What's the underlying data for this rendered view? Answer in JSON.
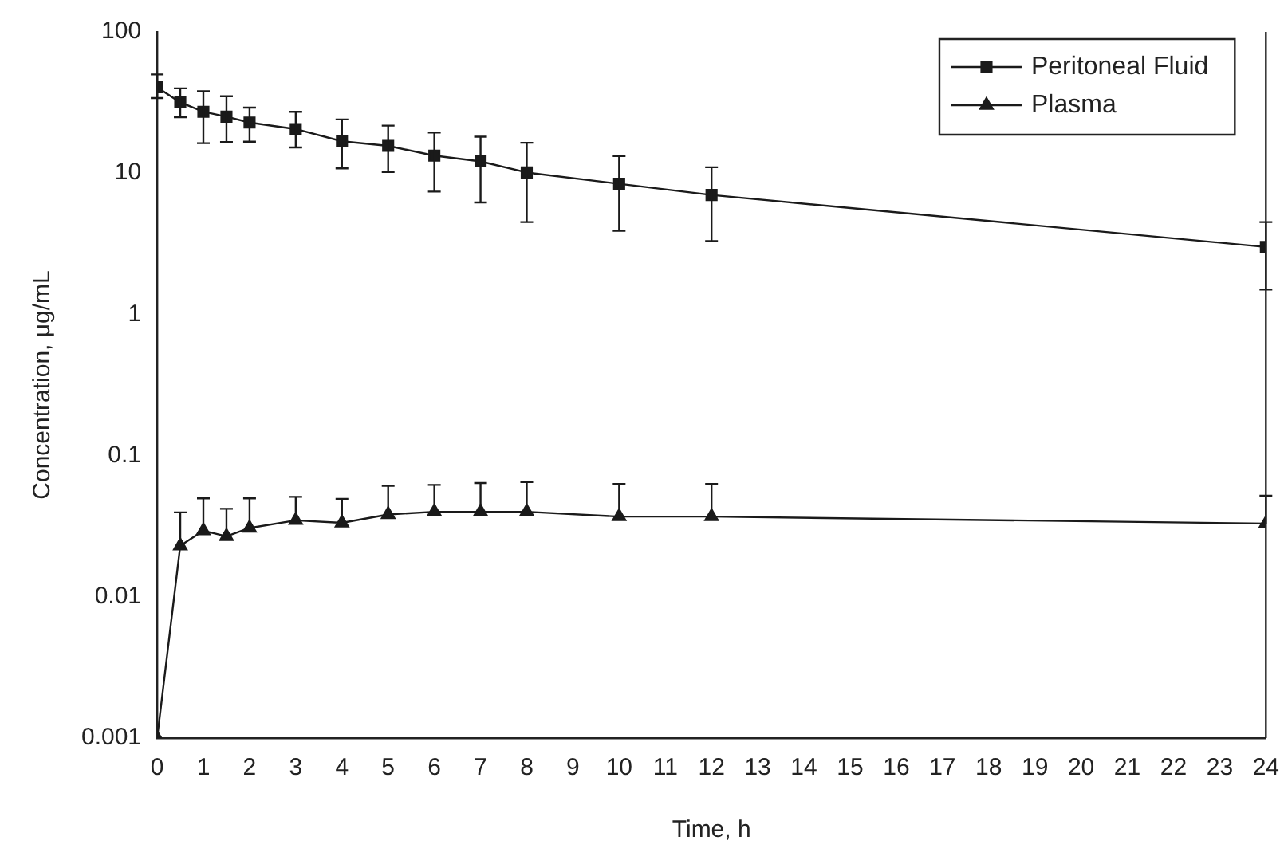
{
  "chart_data": {
    "type": "line",
    "xlabel": "Time, h",
    "ylabel": "Concentration, μg/mL",
    "x": [
      0,
      0.5,
      1,
      1.5,
      2,
      3,
      4,
      5,
      6,
      7,
      8,
      10,
      12,
      24
    ],
    "series": [
      {
        "name": "Peritoneal Fluid",
        "color": "#1a1a1a",
        "marker": "square",
        "values": [
          40.5,
          31.7,
          27.2,
          25.1,
          22.8,
          20.5,
          16.8,
          15.6,
          13.3,
          12.1,
          10.1,
          8.4,
          7.0,
          3.0
        ],
        "errors": [
          [
            34,
            50
          ],
          [
            24.9,
            39.8
          ],
          [
            16.3,
            38
          ],
          [
            16.6,
            35
          ],
          [
            16.7,
            29.1
          ],
          [
            15.2,
            27.2
          ],
          [
            10.8,
            24
          ],
          [
            10.2,
            21.7
          ],
          [
            7.4,
            19.4
          ],
          [
            6.2,
            18.1
          ],
          [
            4.5,
            16.4
          ],
          [
            3.9,
            13.2
          ],
          [
            3.3,
            11
          ],
          [
            1.5,
            4.5
          ]
        ]
      },
      {
        "name": "Plasma",
        "color": "#1a1a1a",
        "marker": "triangle",
        "values": [
          0.001,
          0.023,
          0.0294,
          0.0268,
          0.0307,
          0.0348,
          0.0334,
          0.0383,
          0.04,
          0.04,
          0.04,
          0.037,
          0.037,
          0.033
        ],
        "errors": [
          null,
          [
            0.023,
            0.0396
          ],
          [
            0.0294,
            0.0498
          ],
          [
            0.0268,
            0.042
          ],
          [
            0.0307,
            0.0498
          ],
          [
            0.0348,
            0.051
          ],
          [
            0.0334,
            0.0494
          ],
          [
            0.0383,
            0.061
          ],
          [
            0.04,
            0.062
          ],
          [
            0.04,
            0.064
          ],
          [
            0.04,
            0.065
          ],
          [
            0.037,
            0.063
          ],
          [
            0.037,
            0.063
          ],
          [
            0.033,
            0.052
          ]
        ]
      }
    ],
    "log": "y",
    "xlim": [
      0,
      24
    ],
    "xticks": [
      0,
      1,
      2,
      3,
      4,
      5,
      6,
      7,
      8,
      9,
      10,
      11,
      12,
      13,
      14,
      15,
      16,
      17,
      18,
      19,
      20,
      21,
      22,
      23,
      24
    ],
    "ylim": [
      0.001,
      100
    ],
    "yticks": [
      0.001,
      0.01,
      0.1,
      1,
      10,
      100
    ],
    "grid": false,
    "legend": "top right",
    "line_style": "solid"
  }
}
